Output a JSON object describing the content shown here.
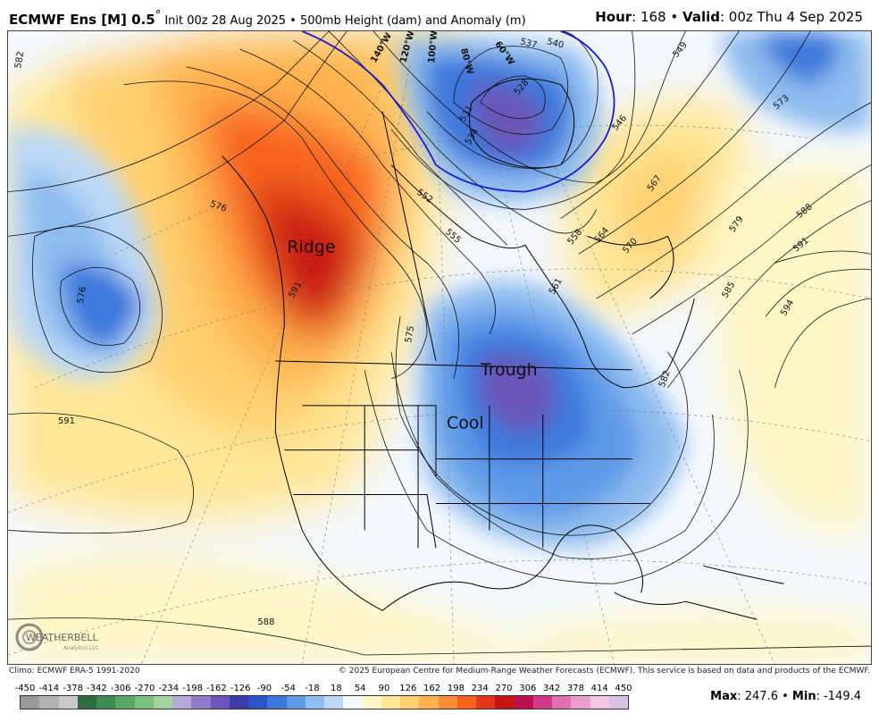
{
  "header": {
    "model": "ECMWF Ens [M] 0.5",
    "degree": "°",
    "init": " Init 00z 28 Aug 2025 • 500mb Height (dam) and Anomaly (m)",
    "hour_label": "Hour",
    "hour_value": ": 168 •",
    "valid_label": "Valid",
    "valid_value": ": 00z Thu 4 Sep 2025"
  },
  "map_labels": {
    "ridge": "Ridge",
    "trough": "Trough",
    "cool": "Cool"
  },
  "contour_labels": [
    "582",
    "576",
    "576",
    "591",
    "591",
    "588",
    "552",
    "555",
    "558",
    "564",
    "570",
    "567",
    "573",
    "579",
    "585",
    "582",
    "588",
    "591",
    "594",
    "546",
    "549",
    "537",
    "540",
    "528",
    "531",
    "534",
    "561",
    "575",
    "140°W",
    "120°W",
    "100°W",
    "80°W",
    "60°W"
  ],
  "logo": {
    "text": "WEATHERBELL",
    "tag": "Analytics LLC"
  },
  "footer": {
    "climo": "Climo: ECMWF ERA-5 1991-2020",
    "copyright": "© 2025 European Centre for Medium-Range Weather Forecasts (ECMWF). This service is based on data and products of the ECMWF."
  },
  "colorbar": {
    "ticks": [
      "-450",
      "-414",
      "-378",
      "-342",
      "-306",
      "-270",
      "-234",
      "-198",
      "-162",
      "-126",
      "-90",
      "-54",
      "-18",
      "18",
      "54",
      "90",
      "126",
      "162",
      "198",
      "234",
      "270",
      "306",
      "342",
      "378",
      "414",
      "450"
    ],
    "colors": [
      "#9a9a9a",
      "#b3b3b3",
      "#c9c9c9",
      "#2f6b3e",
      "#3f8a4f",
      "#58a764",
      "#7cc07f",
      "#a2d49f",
      "#b7a8d8",
      "#8f7cc9",
      "#6a55b8",
      "#3b3aa8",
      "#2d52c4",
      "#3c78dc",
      "#5e9ae8",
      "#8dbcef",
      "#bcd8f6",
      "#f4f8fd",
      "#fff7c6",
      "#ffe799",
      "#ffd06f",
      "#ffb14d",
      "#ff8c35",
      "#f8621f",
      "#e8341a",
      "#c81414",
      "#b81050",
      "#d03a88",
      "#e070b0",
      "#eaa0cf",
      "#f0c8e2",
      "#d9c2e6"
    ]
  },
  "stats": {
    "max_label": "Max",
    "max_value": ": 247.6 •",
    "min_label": "Min",
    "min_value": ": -149.4"
  }
}
